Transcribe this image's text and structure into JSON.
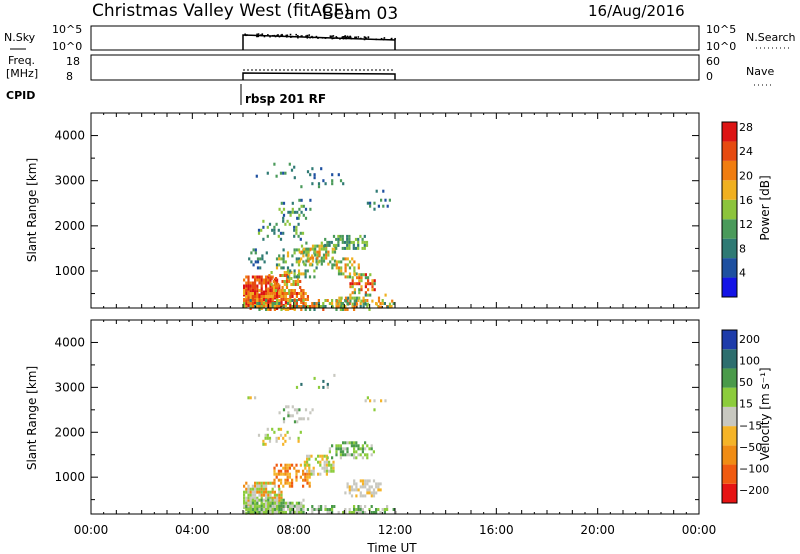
{
  "header": {
    "title": "Christmas Valley West (fitACF)",
    "beam": "Beam 03",
    "date": "16/Aug/2016"
  },
  "noise_panel": {
    "left_label": "N.Sky",
    "right_label": "N.Search",
    "left_ticks": [
      "10^5",
      "10^0"
    ],
    "right_ticks": [
      "10^5",
      "10^0"
    ]
  },
  "freq_panel": {
    "left_label_line1": "Freq.",
    "left_label_line2": "[MHz]",
    "right_label": "Nave",
    "left_ticks": [
      "18",
      "8"
    ],
    "right_ticks": [
      "60",
      "0"
    ]
  },
  "cpid": {
    "label": "CPID",
    "program": "rbsp 201 RF"
  },
  "colors": {
    "power_scale": [
      "#1414e6",
      "#1e50a0",
      "#2f7a74",
      "#4a9a5a",
      "#8cc43c",
      "#f0b020",
      "#f07d10",
      "#e64a10",
      "#dc1414"
    ],
    "velocity_scale": [
      "#e61414",
      "#f05a10",
      "#f08c14",
      "#f5b428",
      "#c8c8c0",
      "#8ccc3c",
      "#4a9a4a",
      "#2d6e6e",
      "#1e3caa"
    ]
  },
  "chart_data": [
    {
      "type": "heatmap",
      "panel": "power",
      "ylabel": "Slant Range [km]",
      "colorbar_label": "Power [dB]",
      "colorbar_ticks": [
        "4",
        "8",
        "12",
        "16",
        "20",
        "24",
        "28"
      ],
      "x_ticks": [
        "00:00",
        "04:00",
        "08:00",
        "12:00",
        "16:00",
        "20:00",
        "00:00"
      ],
      "y_ticks": [
        "1000",
        "2000",
        "3000",
        "4000"
      ],
      "xlim_hours": [
        0,
        24
      ],
      "ylim_km": [
        180,
        4500
      ],
      "data_window_hours": [
        6,
        12
      ]
    },
    {
      "type": "heatmap",
      "panel": "velocity",
      "ylabel": "Slant Range [km]",
      "xlabel": "Time UT",
      "colorbar_label": "Velocity [m s⁻¹]",
      "colorbar_ticks": [
        "-200",
        "-100",
        "-50",
        "-15",
        "15",
        "50",
        "100",
        "200"
      ],
      "x_ticks": [
        "00:00",
        "04:00",
        "08:00",
        "12:00",
        "16:00",
        "20:00",
        "00:00"
      ],
      "y_ticks": [
        "1000",
        "2000",
        "3000",
        "4000"
      ],
      "xlim_hours": [
        0,
        24
      ],
      "ylim_km": [
        180,
        4500
      ],
      "data_window_hours": [
        6,
        12
      ]
    }
  ]
}
